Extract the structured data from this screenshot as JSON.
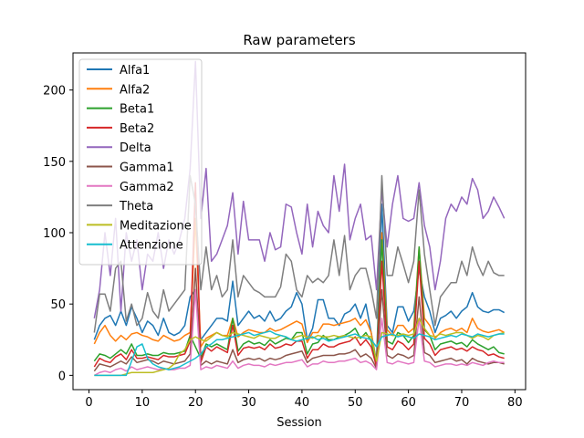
{
  "chart_data": {
    "type": "line",
    "title": "Raw parameters",
    "xlabel": "Session",
    "ylabel": "",
    "xlim": [
      -3,
      82
    ],
    "ylim": [
      -10,
      226
    ],
    "xticks": [
      0,
      10,
      20,
      30,
      40,
      50,
      60,
      70,
      80
    ],
    "yticks": [
      0,
      50,
      100,
      150,
      200
    ],
    "grid": false,
    "legend_position": "upper-left",
    "x_start": 1,
    "series": [
      {
        "name": "Alfa1",
        "color": "#1f77b4",
        "values": [
          25,
          35,
          40,
          42,
          35,
          45,
          35,
          48,
          40,
          30,
          38,
          35,
          28,
          40,
          30,
          28,
          30,
          35,
          55,
          60,
          25,
          30,
          35,
          40,
          40,
          38,
          66,
          35,
          40,
          45,
          40,
          42,
          38,
          45,
          38,
          40,
          45,
          48,
          58,
          50,
          25,
          33,
          53,
          53,
          40,
          40,
          35,
          43,
          45,
          50,
          40,
          50,
          30,
          10,
          120,
          35,
          30,
          48,
          48,
          38,
          45,
          75,
          55,
          45,
          30,
          40,
          42,
          45,
          40,
          45,
          48,
          58,
          48,
          45,
          44,
          46,
          46,
          44
        ]
      },
      {
        "name": "Alfa2",
        "color": "#ff7f0e",
        "values": [
          22,
          30,
          35,
          28,
          24,
          28,
          25,
          29,
          30,
          28,
          27,
          25,
          24,
          28,
          26,
          24,
          25,
          28,
          30,
          110,
          20,
          26,
          28,
          30,
          28,
          28,
          40,
          27,
          30,
          32,
          31,
          30,
          30,
          33,
          31,
          32,
          34,
          36,
          38,
          36,
          23,
          30,
          30,
          36,
          36,
          35,
          36,
          37,
          38,
          40,
          35,
          39,
          30,
          8,
          100,
          32,
          28,
          35,
          35,
          30,
          33,
          90,
          40,
          35,
          26,
          30,
          32,
          33,
          31,
          33,
          30,
          40,
          33,
          31,
          30,
          31,
          32,
          30
        ]
      },
      {
        "name": "Beta1",
        "color": "#2ca02c",
        "values": [
          10,
          15,
          14,
          12,
          15,
          18,
          15,
          22,
          14,
          14,
          15,
          14,
          14,
          16,
          15,
          15,
          16,
          17,
          28,
          20,
          12,
          22,
          20,
          22,
          20,
          18,
          40,
          17,
          22,
          24,
          22,
          23,
          21,
          25,
          22,
          24,
          26,
          25,
          30,
          30,
          15,
          22,
          23,
          28,
          25,
          25,
          27,
          28,
          30,
          33,
          26,
          30,
          24,
          8,
          95,
          24,
          22,
          30,
          28,
          23,
          28,
          90,
          32,
          28,
          18,
          22,
          23,
          24,
          22,
          23,
          20,
          25,
          22,
          20,
          18,
          20,
          16,
          15
        ]
      },
      {
        "name": "Beta2",
        "color": "#d62728",
        "values": [
          6,
          12,
          10,
          9,
          13,
          15,
          11,
          18,
          12,
          12,
          13,
          12,
          11,
          14,
          13,
          13,
          14,
          15,
          24,
          135,
          9,
          20,
          17,
          20,
          18,
          16,
          35,
          14,
          19,
          20,
          19,
          20,
          18,
          22,
          19,
          20,
          22,
          21,
          24,
          24,
          12,
          18,
          18,
          22,
          20,
          20,
          22,
          23,
          24,
          27,
          21,
          25,
          20,
          6,
          80,
          20,
          18,
          24,
          22,
          18,
          22,
          80,
          26,
          22,
          14,
          18,
          19,
          20,
          18,
          19,
          17,
          20,
          18,
          17,
          14,
          15,
          13,
          12
        ]
      },
      {
        "name": "Delta",
        "color": "#9467bd",
        "values": [
          40,
          60,
          100,
          70,
          110,
          45,
          100,
          80,
          95,
          60,
          85,
          80,
          100,
          75,
          95,
          85,
          95,
          110,
          145,
          220,
          110,
          145,
          80,
          85,
          95,
          105,
          128,
          85,
          122,
          95,
          95,
          95,
          80,
          100,
          88,
          90,
          120,
          118,
          100,
          85,
          120,
          90,
          115,
          105,
          100,
          140,
          115,
          148,
          95,
          110,
          120,
          95,
          98,
          60,
          130,
          90,
          120,
          140,
          110,
          108,
          110,
          135,
          105,
          90,
          60,
          80,
          110,
          120,
          115,
          125,
          120,
          138,
          130,
          110,
          115,
          125,
          118,
          110
        ]
      },
      {
        "name": "Gamma1",
        "color": "#8c564b",
        "values": [
          3,
          8,
          7,
          6,
          8,
          10,
          8,
          13,
          9,
          10,
          11,
          10,
          8,
          10,
          9,
          8,
          9,
          10,
          15,
          75,
          7,
          10,
          8,
          10,
          9,
          8,
          18,
          9,
          11,
          12,
          11,
          12,
          10,
          12,
          11,
          12,
          14,
          15,
          16,
          17,
          9,
          12,
          13,
          14,
          14,
          14,
          15,
          15,
          16,
          18,
          13,
          15,
          12,
          5,
          60,
          14,
          12,
          15,
          14,
          12,
          14,
          55,
          16,
          14,
          9,
          10,
          11,
          12,
          10,
          11,
          8,
          12,
          10,
          9,
          8,
          9,
          9,
          8
        ]
      },
      {
        "name": "Gamma2",
        "color": "#e377c2",
        "values": [
          0,
          2,
          3,
          2,
          4,
          5,
          3,
          6,
          4,
          5,
          6,
          5,
          4,
          5,
          4,
          4,
          5,
          5,
          7,
          60,
          4,
          6,
          5,
          7,
          6,
          5,
          10,
          5,
          7,
          8,
          7,
          7,
          6,
          8,
          7,
          8,
          9,
          9,
          10,
          11,
          6,
          8,
          8,
          10,
          9,
          9,
          10,
          10,
          11,
          12,
          9,
          10,
          8,
          4,
          40,
          9,
          8,
          10,
          9,
          8,
          9,
          40,
          10,
          9,
          6,
          7,
          8,
          8,
          7,
          8,
          7,
          9,
          8,
          7,
          9,
          10,
          9,
          9
        ]
      },
      {
        "name": "Theta",
        "color": "#7f7f7f",
        "values": [
          30,
          57,
          57,
          45,
          75,
          80,
          38,
          50,
          35,
          40,
          58,
          45,
          40,
          60,
          45,
          50,
          55,
          60,
          140,
          120,
          60,
          90,
          60,
          70,
          55,
          60,
          95,
          55,
          70,
          65,
          60,
          58,
          55,
          55,
          55,
          62,
          85,
          80,
          60,
          55,
          70,
          65,
          68,
          65,
          70,
          95,
          70,
          98,
          60,
          70,
          75,
          75,
          60,
          40,
          140,
          70,
          70,
          90,
          78,
          65,
          80,
          130,
          85,
          60,
          35,
          55,
          60,
          65,
          65,
          80,
          70,
          90,
          78,
          70,
          80,
          72,
          70,
          70
        ]
      },
      {
        "name": "Meditazione",
        "color": "#bcbd22",
        "values": [
          0,
          0,
          0,
          0,
          0,
          0,
          1,
          2,
          2,
          2,
          2,
          2,
          3,
          4,
          5,
          8,
          15,
          18,
          25,
          27,
          25,
          24,
          27,
          30,
          28,
          27,
          30,
          29,
          28,
          27,
          26,
          28,
          27,
          26,
          26,
          28,
          27,
          25,
          27,
          28,
          27,
          26,
          28,
          27,
          27,
          28,
          27,
          28,
          27,
          26,
          27,
          28,
          27,
          10,
          30,
          29,
          28,
          28,
          29,
          28,
          29,
          40,
          33,
          28,
          27,
          29,
          28,
          29,
          30,
          30,
          28,
          26,
          28,
          27,
          25,
          28,
          29,
          30
        ]
      },
      {
        "name": "Attenzione",
        "color": "#17becf",
        "values": [
          0,
          0,
          0,
          0,
          0,
          0,
          0,
          10,
          20,
          22,
          12,
          8,
          6,
          5,
          4,
          5,
          6,
          8,
          10,
          12,
          15,
          20,
          22,
          25,
          25,
          26,
          27,
          28,
          29,
          30,
          28,
          29,
          30,
          31,
          29,
          28,
          27,
          25,
          24,
          25,
          26,
          27,
          25,
          26,
          24,
          25,
          26,
          27,
          28,
          29,
          27,
          26,
          25,
          20,
          27,
          28,
          29,
          27,
          28,
          27,
          26,
          29,
          28,
          27,
          25,
          26,
          27,
          28,
          27,
          29,
          28,
          27,
          29,
          28,
          27,
          28,
          29,
          29
        ]
      }
    ]
  }
}
